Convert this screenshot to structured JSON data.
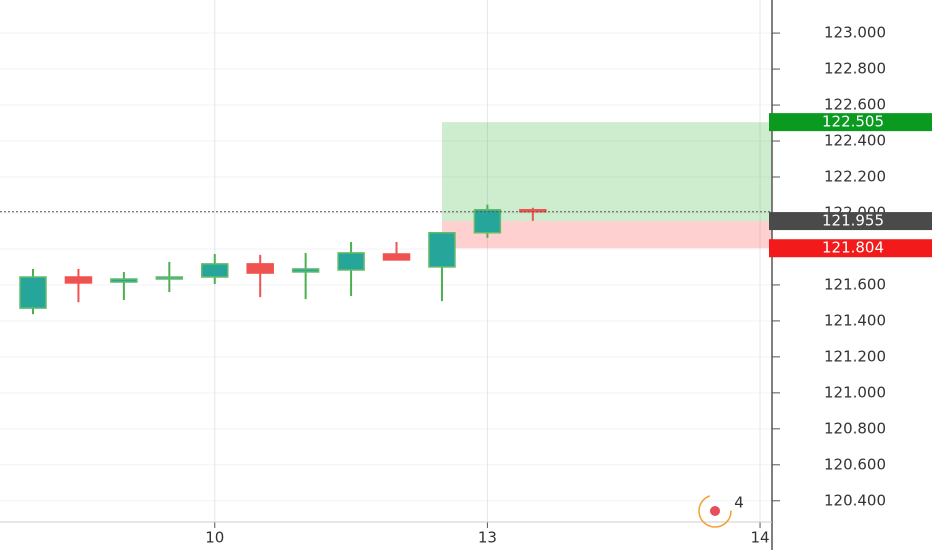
{
  "chart_data": {
    "type": "candlestick",
    "categories": [
      null,
      null,
      null,
      null,
      "10",
      null,
      null,
      null,
      null,
      null,
      "13",
      null,
      null,
      null,
      null,
      null,
      "14"
    ],
    "open": [
      121.471,
      121.644,
      121.616,
      121.633,
      121.644,
      121.717,
      121.672,
      121.683,
      121.772,
      121.7,
      121.89,
      122.018,
      null,
      null,
      null,
      null,
      null
    ],
    "high": [
      121.689,
      121.689,
      121.672,
      121.728,
      121.772,
      121.767,
      121.778,
      121.839,
      121.839,
      121.89,
      122.046,
      122.029,
      null,
      null,
      null,
      null,
      null
    ],
    "low": [
      121.437,
      121.504,
      121.516,
      121.56,
      121.605,
      121.532,
      121.521,
      121.538,
      121.739,
      121.51,
      121.862,
      121.956,
      null,
      null,
      null,
      null,
      null
    ],
    "close": [
      121.644,
      121.611,
      121.633,
      121.644,
      121.717,
      121.666,
      121.689,
      121.778,
      121.739,
      121.89,
      122.018,
      122.007,
      null,
      null,
      null,
      null,
      null
    ],
    "up_color": "#26a69a",
    "down_color": "#ef5350",
    "ylim": [
      120.282,
      123.184
    ],
    "yticks": [
      {
        "value": 120.4,
        "label": "120.400"
      },
      {
        "value": 120.6,
        "label": "120.600"
      },
      {
        "value": 120.8,
        "label": "120.800"
      },
      {
        "value": 121,
        "label": "121.000"
      },
      {
        "value": 121.2,
        "label": "121.200"
      },
      {
        "value": 121.4,
        "label": "121.400"
      },
      {
        "value": 121.6,
        "label": "121.600"
      },
      {
        "value": 121.8,
        "label": "121.800"
      },
      {
        "value": 122,
        "label": "122.000"
      },
      {
        "value": 122.2,
        "label": "122.200"
      },
      {
        "value": 122.4,
        "label": "122.400"
      },
      {
        "value": 122.6,
        "label": "122.600"
      },
      {
        "value": 122.8,
        "label": "122.800"
      },
      {
        "value": 123,
        "label": "123.000"
      }
    ],
    "grid": true,
    "price_labels": [
      {
        "value": 122.505,
        "label": "122.505",
        "color": "#0a9a1f"
      },
      {
        "value": 121.955,
        "label": "121.955",
        "color": "#4a4a4a"
      },
      {
        "value": 121.804,
        "label": "121.804",
        "color": "#f21a1a"
      }
    ],
    "badge": "4"
  }
}
